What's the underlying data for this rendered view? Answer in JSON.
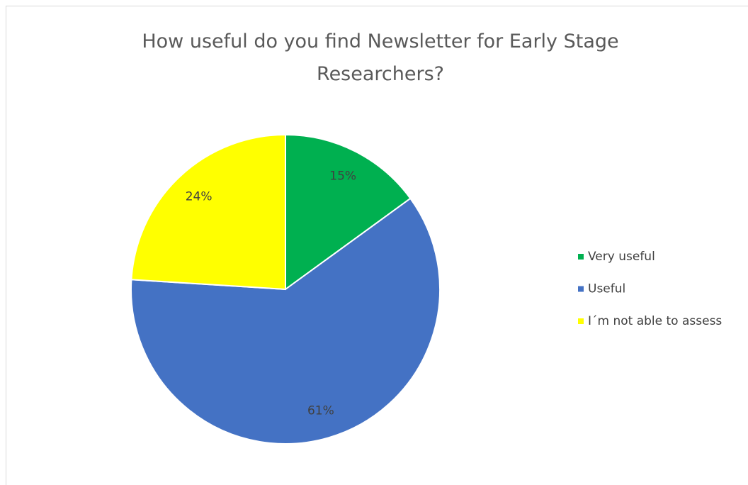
{
  "chart_data": {
    "type": "pie",
    "title": "How useful do you find Newsletter for Early Stage Researchers?",
    "categories": [
      "Very useful",
      "Useful",
      "I´m not able to assess"
    ],
    "values": [
      15,
      61,
      24
    ],
    "value_labels": [
      "15%",
      "61%",
      "24%"
    ],
    "colors": [
      "#00b050",
      "#4472c4",
      "#ffff00"
    ],
    "legend": "right"
  }
}
